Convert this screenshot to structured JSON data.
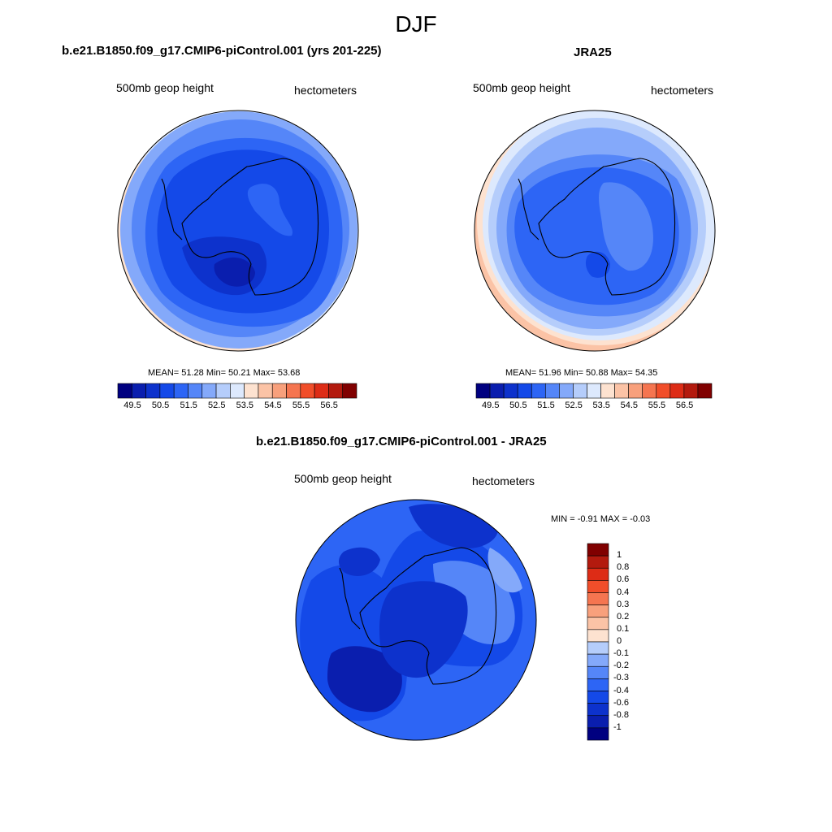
{
  "title": "DJF",
  "palette": [
    "#000080",
    "#0a1eae",
    "#0d32cc",
    "#1449e8",
    "#2d65f5",
    "#5586f8",
    "#84a9fa",
    "#b5cdfb",
    "#dde9fd",
    "#fde2d0",
    "#fbc3a6",
    "#f8a07c",
    "#f57550",
    "#f14e2a",
    "#dd2c16",
    "#b31a0e",
    "#800000"
  ],
  "panels": [
    {
      "id": "model",
      "title": "b.e21.B1850.f09_g17.CMIP6-piControl.001 (yrs 201-225)",
      "left_label": "500mb geop height",
      "right_label": "hectometers",
      "stats": "MEAN=  51.28  Min=  50.21  Max=  53.68",
      "colorbar_ticks": [
        "49.5",
        "50.5",
        "51.5",
        "52.5",
        "53.5",
        "54.5",
        "55.5",
        "56.5"
      ]
    },
    {
      "id": "obs",
      "title": "JRA25",
      "left_label": "500mb geop height",
      "right_label": "hectometers",
      "stats": "MEAN=  51.96  Min=  50.88  Max=  54.35",
      "colorbar_ticks": [
        "49.5",
        "50.5",
        "51.5",
        "52.5",
        "53.5",
        "54.5",
        "55.5",
        "56.5"
      ]
    },
    {
      "id": "diff",
      "title": "b.e21.B1850.f09_g17.CMIP6-piControl.001 - JRA25",
      "left_label": "500mb geop height",
      "right_label": "hectometers",
      "stats": "MIN =  -0.91 MAX =  -0.03",
      "colorbar_ticks": [
        "1",
        "0.8",
        "0.6",
        "0.4",
        "0.3",
        "0.2",
        "0.1",
        "0",
        "-0.1",
        "-0.2",
        "-0.3",
        "-0.4",
        "-0.6",
        "-0.8",
        "-1"
      ]
    }
  ]
}
